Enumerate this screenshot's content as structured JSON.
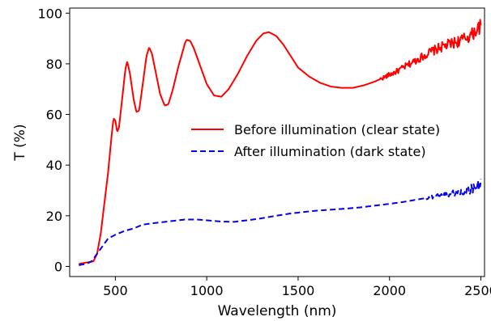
{
  "chart_data": {
    "type": "line",
    "xlabel": "Wavelength (nm)",
    "ylabel": "T (%)",
    "xlim": [
      250,
      2520
    ],
    "ylim": [
      -4,
      102
    ],
    "xticks": [
      500,
      1000,
      1500,
      2000,
      2500
    ],
    "yticks": [
      0,
      20,
      40,
      60,
      80,
      100
    ],
    "grid": false,
    "legend_position": "center-right",
    "series": [
      {
        "name": "Before illumination (clear state)",
        "color": "#ff0000",
        "line_style": "solid",
        "noise_start": 1950,
        "noise_amplitude": 2.0,
        "points": [
          [
            300,
            1
          ],
          [
            340,
            1.5
          ],
          [
            380,
            2
          ],
          [
            400,
            5
          ],
          [
            420,
            13
          ],
          [
            440,
            25
          ],
          [
            460,
            37
          ],
          [
            480,
            52
          ],
          [
            490,
            58.5
          ],
          [
            500,
            57.5
          ],
          [
            510,
            53
          ],
          [
            520,
            55
          ],
          [
            540,
            68
          ],
          [
            555,
            78
          ],
          [
            565,
            81
          ],
          [
            580,
            76
          ],
          [
            600,
            66
          ],
          [
            615,
            61
          ],
          [
            630,
            61.5
          ],
          [
            650,
            72
          ],
          [
            670,
            83
          ],
          [
            685,
            86.5
          ],
          [
            700,
            84
          ],
          [
            720,
            77
          ],
          [
            745,
            68
          ],
          [
            770,
            63.5
          ],
          [
            790,
            64
          ],
          [
            815,
            70
          ],
          [
            845,
            79
          ],
          [
            865,
            84
          ],
          [
            880,
            88
          ],
          [
            890,
            89.5
          ],
          [
            910,
            89
          ],
          [
            930,
            86
          ],
          [
            960,
            80
          ],
          [
            1000,
            72
          ],
          [
            1040,
            67.5
          ],
          [
            1080,
            67
          ],
          [
            1120,
            70
          ],
          [
            1170,
            76
          ],
          [
            1220,
            83
          ],
          [
            1270,
            89
          ],
          [
            1310,
            92
          ],
          [
            1340,
            92.5
          ],
          [
            1380,
            91
          ],
          [
            1420,
            87.5
          ],
          [
            1460,
            83
          ],
          [
            1500,
            78.5
          ],
          [
            1560,
            75
          ],
          [
            1620,
            72.5
          ],
          [
            1680,
            71
          ],
          [
            1740,
            70.5
          ],
          [
            1800,
            70.5
          ],
          [
            1860,
            71.5
          ],
          [
            1920,
            73
          ],
          [
            1980,
            75
          ],
          [
            2040,
            77
          ],
          [
            2100,
            79.5
          ],
          [
            2160,
            82
          ],
          [
            2220,
            84.5
          ],
          [
            2280,
            86.5
          ],
          [
            2340,
            88
          ],
          [
            2400,
            89.5
          ],
          [
            2450,
            91.5
          ],
          [
            2500,
            95
          ]
        ]
      },
      {
        "name": "After illumination (dark state)",
        "color": "#0000ee",
        "line_style": "dashed",
        "noise_start": 2200,
        "noise_amplitude": 1.6,
        "points": [
          [
            300,
            0.5
          ],
          [
            340,
            1
          ],
          [
            370,
            2
          ],
          [
            400,
            5
          ],
          [
            430,
            8
          ],
          [
            460,
            11
          ],
          [
            500,
            12.5
          ],
          [
            550,
            14
          ],
          [
            600,
            15
          ],
          [
            650,
            16.5
          ],
          [
            700,
            17
          ],
          [
            760,
            17.5
          ],
          [
            820,
            18
          ],
          [
            880,
            18.5
          ],
          [
            950,
            18.5
          ],
          [
            1000,
            18.2
          ],
          [
            1080,
            17.7
          ],
          [
            1150,
            17.6
          ],
          [
            1220,
            18.2
          ],
          [
            1300,
            19
          ],
          [
            1380,
            20
          ],
          [
            1450,
            20.8
          ],
          [
            1520,
            21.4
          ],
          [
            1600,
            22
          ],
          [
            1680,
            22.4
          ],
          [
            1760,
            22.8
          ],
          [
            1840,
            23.3
          ],
          [
            1920,
            24
          ],
          [
            2000,
            24.7
          ],
          [
            2080,
            25.5
          ],
          [
            2160,
            26.5
          ],
          [
            2240,
            27.5
          ],
          [
            2320,
            28.5
          ],
          [
            2400,
            29.5
          ],
          [
            2450,
            30.5
          ],
          [
            2500,
            32.5
          ]
        ]
      }
    ]
  }
}
